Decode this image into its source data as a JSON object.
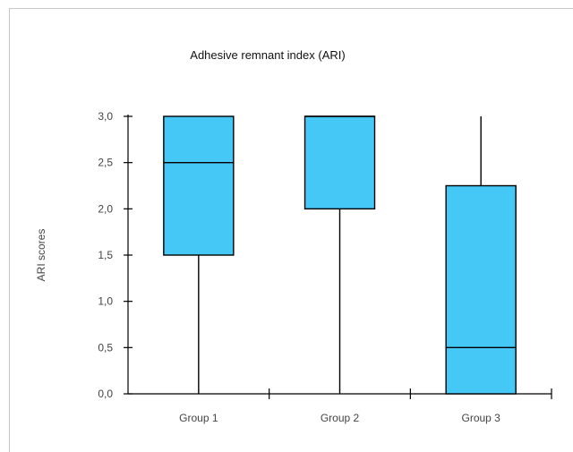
{
  "chart_data": {
    "type": "boxplot",
    "title": "Adhesive remnant index (ARI)",
    "ylabel": "ARI scores",
    "xlabel": "",
    "ylim": [
      0,
      3
    ],
    "y_ticks": [
      {
        "value": 0.0,
        "label": "0,0"
      },
      {
        "value": 0.5,
        "label": "0,5"
      },
      {
        "value": 1.0,
        "label": "1,0"
      },
      {
        "value": 1.5,
        "label": "1,5"
      },
      {
        "value": 2.0,
        "label": "2,0"
      },
      {
        "value": 2.5,
        "label": "2,5"
      },
      {
        "value": 3.0,
        "label": "3,0"
      }
    ],
    "box_color": "#45c8f5",
    "line_color": "#000000",
    "grid": false,
    "legend": "none",
    "categories": [
      "Group 1",
      "Group 2",
      "Group 3"
    ],
    "boxes": [
      {
        "category": "Group 1",
        "min": 0.0,
        "q1": 1.5,
        "median": 2.5,
        "q3": 3.0,
        "max": 3.0
      },
      {
        "category": "Group 2",
        "min": 0.0,
        "q1": 2.0,
        "median": 3.0,
        "q3": 3.0,
        "max": 3.0
      },
      {
        "category": "Group 3",
        "min": 0.0,
        "q1": 0.0,
        "median": 0.5,
        "q3": 2.25,
        "max": 3.0
      }
    ]
  }
}
